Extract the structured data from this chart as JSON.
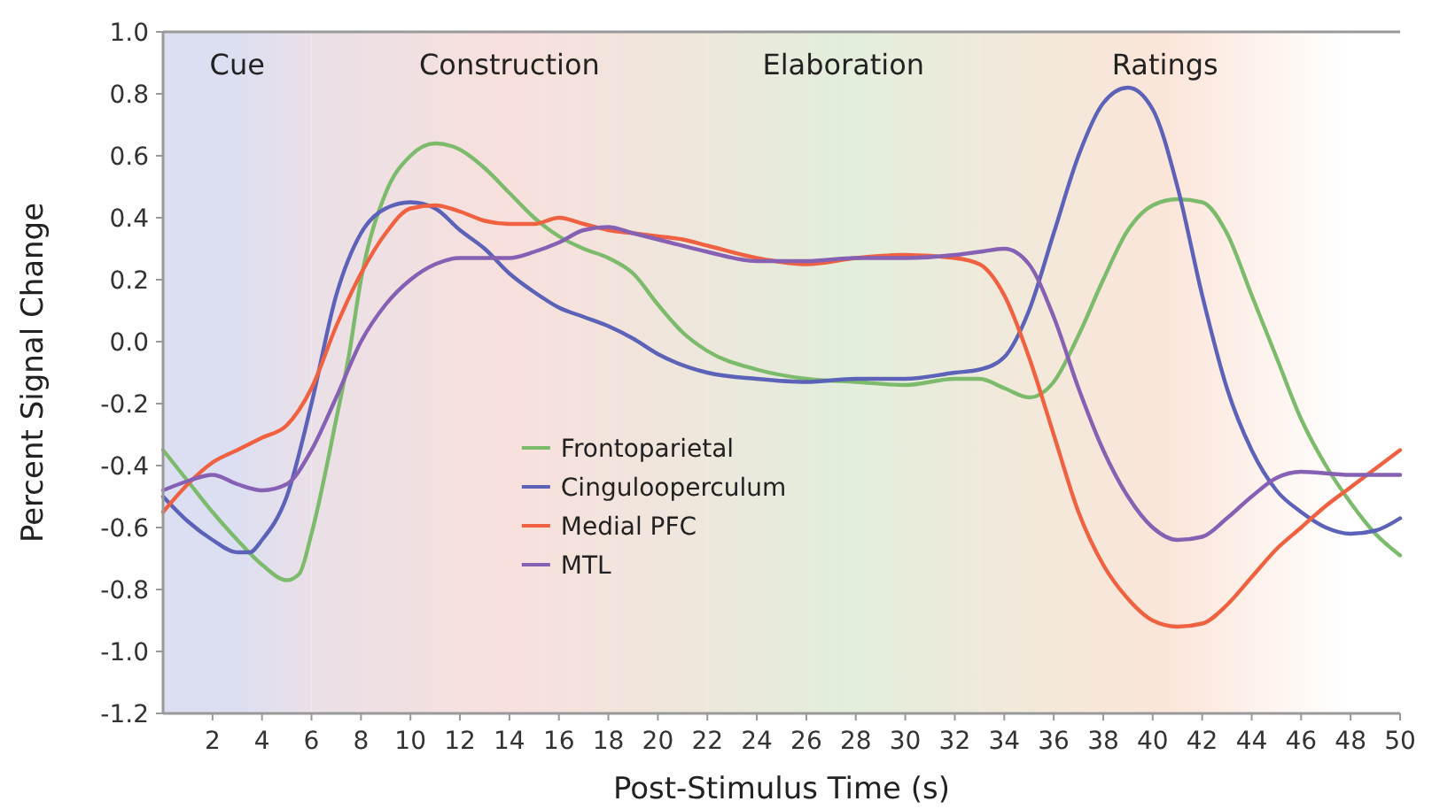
{
  "chart_data": {
    "type": "line",
    "xlabel": "Post-Stimulus Time (s)",
    "ylabel": "Percent Signal Change",
    "xlim": [
      0,
      50
    ],
    "xticks": [
      2,
      4,
      6,
      8,
      10,
      12,
      14,
      16,
      18,
      20,
      22,
      24,
      26,
      28,
      30,
      32,
      34,
      36,
      38,
      40,
      42,
      44,
      46,
      48,
      50
    ],
    "ylim": [
      -1.2,
      1.0
    ],
    "yticks": [
      {
        "value": -1.2,
        "label": "-1.2"
      },
      {
        "value": -1.0,
        "label": "-1.0"
      },
      -0.8,
      -0.6,
      -0.4,
      -0.2,
      {
        "value": 0,
        "label": "0.0"
      },
      0.2,
      0.4,
      0.6,
      0.8,
      {
        "value": 1.0,
        "label": "1.0"
      }
    ],
    "grid": false,
    "legend": "bottom left",
    "marker": "none",
    "line_style": "solid",
    "bands": [
      {
        "axis": "x",
        "from": 0,
        "to": 6,
        "label": "Cue",
        "color": "#dcdff2"
      },
      {
        "axis": "x",
        "from": 6,
        "to": 22,
        "label": "Construction",
        "color": "#f8e0dc"
      },
      {
        "axis": "x",
        "from": 22,
        "to": 33,
        "label": "Elaboration",
        "color": "#e2eedc"
      },
      {
        "axis": "x",
        "from": 33,
        "to": 48,
        "label": "Ratings",
        "color": "#fbe5d9"
      }
    ],
    "series": [
      {
        "name": "Frontoparietal",
        "color": "#7dbb6c",
        "x": [
          0,
          1,
          2,
          3,
          4,
          5,
          5.5,
          6,
          7,
          7.5,
          8,
          9,
          10,
          11,
          12,
          13,
          14,
          15,
          16,
          17,
          18,
          19,
          20,
          21,
          22,
          24,
          26,
          28,
          30,
          32,
          33,
          34,
          35,
          36,
          37,
          38,
          39,
          40,
          41,
          42,
          43,
          44,
          45,
          46,
          47,
          48,
          49,
          50
        ],
        "values": [
          -0.35,
          -0.45,
          -0.55,
          -0.64,
          -0.72,
          -0.77,
          -0.75,
          -0.62,
          -0.25,
          -0.05,
          0.2,
          0.48,
          0.6,
          0.64,
          0.62,
          0.56,
          0.48,
          0.4,
          0.34,
          0.3,
          0.27,
          0.22,
          0.12,
          0.03,
          -0.03,
          -0.09,
          -0.12,
          -0.13,
          -0.14,
          -0.12,
          -0.12,
          -0.15,
          -0.18,
          -0.13,
          0.02,
          0.2,
          0.36,
          0.44,
          0.46,
          0.45,
          0.35,
          0.15,
          -0.05,
          -0.25,
          -0.4,
          -0.52,
          -0.62,
          -0.69
        ]
      },
      {
        "name": "Cingulooperculum",
        "color": "#5b62b8",
        "x": [
          0,
          1,
          2,
          3,
          3.5,
          4,
          5,
          6,
          7,
          8,
          9,
          10,
          11,
          12,
          13,
          14,
          15,
          16,
          17,
          18,
          19,
          20,
          22,
          24,
          26,
          28,
          30,
          32,
          33,
          34,
          35,
          36,
          37,
          38,
          39,
          40,
          41,
          42,
          43,
          44,
          45,
          46,
          47,
          48,
          49,
          50
        ],
        "values": [
          -0.5,
          -0.58,
          -0.64,
          -0.68,
          -0.68,
          -0.64,
          -0.5,
          -0.2,
          0.15,
          0.35,
          0.43,
          0.45,
          0.43,
          0.36,
          0.3,
          0.22,
          0.16,
          0.11,
          0.08,
          0.05,
          0.01,
          -0.04,
          -0.1,
          -0.12,
          -0.13,
          -0.12,
          -0.12,
          -0.1,
          -0.09,
          -0.05,
          0.1,
          0.35,
          0.6,
          0.77,
          0.82,
          0.75,
          0.5,
          0.15,
          -0.15,
          -0.35,
          -0.48,
          -0.55,
          -0.6,
          -0.62,
          -0.61,
          -0.57
        ]
      },
      {
        "name": "Medial PFC",
        "color": "#ef6140",
        "x": [
          0,
          1,
          2,
          3,
          4,
          5,
          6,
          7,
          8,
          9,
          10,
          11,
          12,
          13,
          14,
          15,
          16,
          17,
          18,
          19,
          20,
          21,
          22,
          24,
          26,
          28,
          30,
          32,
          33,
          34,
          35,
          36,
          37,
          38,
          39,
          40,
          41,
          42,
          43,
          44,
          45,
          46,
          47,
          48,
          49,
          50
        ],
        "values": [
          -0.55,
          -0.46,
          -0.39,
          -0.35,
          -0.31,
          -0.27,
          -0.15,
          0.05,
          0.22,
          0.35,
          0.43,
          0.44,
          0.42,
          0.39,
          0.38,
          0.38,
          0.4,
          0.38,
          0.36,
          0.35,
          0.34,
          0.33,
          0.31,
          0.27,
          0.25,
          0.27,
          0.28,
          0.27,
          0.25,
          0.15,
          -0.05,
          -0.3,
          -0.55,
          -0.72,
          -0.83,
          -0.9,
          -0.92,
          -0.91,
          -0.85,
          -0.76,
          -0.67,
          -0.6,
          -0.53,
          -0.47,
          -0.41,
          -0.35
        ]
      },
      {
        "name": "MTL",
        "color": "#8660b2",
        "x": [
          0,
          1,
          2,
          3,
          4,
          5,
          6,
          7,
          8,
          9,
          10,
          11,
          12,
          13,
          14,
          15,
          16,
          17,
          18,
          19,
          20,
          22,
          24,
          26,
          28,
          30,
          32,
          33,
          34,
          35,
          36,
          37,
          38,
          39,
          40,
          41,
          42,
          43,
          44,
          45,
          46,
          48,
          50
        ],
        "values": [
          -0.48,
          -0.45,
          -0.43,
          -0.46,
          -0.48,
          -0.46,
          -0.35,
          -0.18,
          0.0,
          0.12,
          0.2,
          0.25,
          0.27,
          0.27,
          0.27,
          0.29,
          0.32,
          0.36,
          0.37,
          0.35,
          0.33,
          0.29,
          0.26,
          0.26,
          0.27,
          0.27,
          0.28,
          0.29,
          0.3,
          0.25,
          0.08,
          -0.15,
          -0.35,
          -0.5,
          -0.6,
          -0.64,
          -0.63,
          -0.57,
          -0.5,
          -0.44,
          -0.42,
          -0.43,
          -0.43
        ]
      }
    ]
  }
}
